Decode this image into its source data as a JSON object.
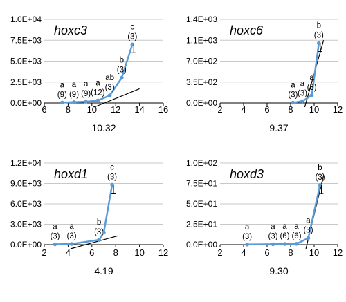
{
  "chart_data": [
    {
      "type": "line",
      "title": "hoxc3",
      "xlim": [
        6,
        16
      ],
      "xticks": [
        "6",
        "8",
        "10",
        "12",
        "14",
        "16"
      ],
      "ylim": [
        0,
        10000
      ],
      "yticks": [
        "0.0E+00",
        "2.5E+03",
        "5.0E+03",
        "7.5E+03",
        "1.0E+04"
      ],
      "x": [
        7.5,
        8.5,
        9.5,
        10.5,
        11.5,
        12.5,
        13.4
      ],
      "y": [
        50,
        100,
        150,
        300,
        900,
        3000,
        7000
      ],
      "letters": [
        "a",
        "a",
        "a",
        "a",
        "ab",
        "b",
        "c"
      ],
      "n": [
        "(9)",
        "(9)",
        "(9)",
        "(12)",
        "(3)",
        "(3)",
        "(3)"
      ],
      "tangent": [
        [
          10.2,
          0
        ],
        [
          14.0,
          1700
        ]
      ],
      "annotation": "10.32",
      "grid": "horizontal"
    },
    {
      "type": "line",
      "title": "hoxc6",
      "xlim": [
        2,
        12
      ],
      "xticks": [
        "2",
        "4",
        "6",
        "8",
        "10",
        "12"
      ],
      "ylim": [
        0,
        1400
      ],
      "yticks": [
        "0.0E+00",
        "3.5E+02",
        "7.0E+02",
        "1.1E+03",
        "1.4E+03"
      ],
      "x": [
        8.2,
        9.0,
        9.8,
        10.4
      ],
      "y": [
        5,
        30,
        130,
        1000
      ],
      "letters": [
        "a",
        "a",
        "a",
        "b"
      ],
      "n": [
        "(3)",
        "(3)",
        "(3)",
        "(3)"
      ],
      "tangent": [
        [
          9.2,
          0
        ],
        [
          10.8,
          1050
        ]
      ],
      "annotation": "9.37",
      "grid": "horizontal"
    },
    {
      "type": "line",
      "title": "hoxd1",
      "xlim": [
        2,
        12
      ],
      "xticks": [
        "2",
        "4",
        "6",
        "8",
        "10",
        "12"
      ],
      "ylim": [
        0,
        12000
      ],
      "yticks": [
        "0.0E+00",
        "3.0E+03",
        "6.0E+03",
        "9.0E+03",
        "1.2E+04"
      ],
      "x": [
        2.9,
        4.3,
        6.6,
        7.0,
        7.7
      ],
      "y": [
        50,
        100,
        700,
        1800,
        8800
      ],
      "letters": [
        "a",
        "a",
        "b",
        "",
        "c"
      ],
      "n": [
        "(3)",
        "(3)",
        "(3)",
        "",
        "(3)"
      ],
      "tangent": [
        [
          4.2,
          0
        ],
        [
          8.2,
          1300
        ]
      ],
      "annotation": "4.19",
      "grid": "horizontal"
    },
    {
      "type": "line",
      "title": "hoxd3",
      "xlim": [
        2,
        12
      ],
      "xticks": [
        "2",
        "4",
        "6",
        "8",
        "10",
        "12"
      ],
      "ylim": [
        0,
        100
      ],
      "yticks": [
        "0.0E+00",
        "2.5E+01",
        "5.0E+01",
        "7.5E+01",
        "1.0E+02"
      ],
      "x": [
        4.3,
        6.5,
        7.5,
        8.5,
        9.5,
        10.5
      ],
      "y": [
        0.2,
        0.5,
        0.8,
        1.0,
        8.0,
        73.0
      ],
      "letters": [
        "a",
        "a",
        "a",
        "a",
        "a",
        "b"
      ],
      "n": [
        "(3)",
        "(3)",
        "(6)",
        "(6)",
        "(3)",
        "(3)"
      ],
      "tangent": [
        [
          9.3,
          0
        ],
        [
          10.8,
          85
        ]
      ],
      "annotation": "9.30",
      "grid": "horizontal"
    }
  ],
  "colors": {
    "series": "#5b9bd5",
    "tangent": "#000000",
    "grid": "#c8c8c8",
    "axis": "#000000",
    "text": "#000000"
  }
}
